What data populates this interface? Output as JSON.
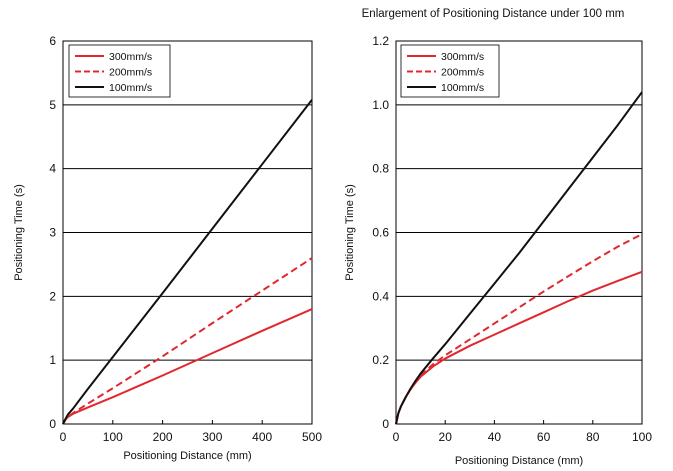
{
  "chart_data": [
    {
      "type": "line",
      "title": "",
      "xlabel": "Positioning Distance (mm)",
      "ylabel": "Positioning Time (s)",
      "xlim": [
        0,
        500
      ],
      "ylim": [
        0,
        6
      ],
      "xticks": [
        0,
        100,
        200,
        300,
        400,
        500
      ],
      "yticks": [
        0,
        1,
        2,
        3,
        4,
        5,
        6
      ],
      "grid": "horizontal",
      "legend": "top-left",
      "series": [
        {
          "name": "300mm/s",
          "color": "#e0282e",
          "dash": "solid",
          "x": [
            0,
            5,
            10,
            20,
            50,
            100,
            200,
            300,
            400,
            500
          ],
          "y": [
            0,
            0.07,
            0.11,
            0.16,
            0.26,
            0.42,
            0.76,
            1.11,
            1.46,
            1.8
          ]
        },
        {
          "name": "200mm/s",
          "color": "#e0282e",
          "dash": "dashed",
          "x": [
            0,
            5,
            10,
            20,
            50,
            100,
            200,
            300,
            400,
            500
          ],
          "y": [
            0,
            0.07,
            0.11,
            0.17,
            0.32,
            0.56,
            1.06,
            1.58,
            2.09,
            2.6
          ]
        },
        {
          "name": "100mm/s",
          "color": "#111111",
          "dash": "solid",
          "x": [
            0,
            5,
            10,
            20,
            50,
            100,
            200,
            300,
            400,
            500
          ],
          "y": [
            0,
            0.08,
            0.15,
            0.24,
            0.55,
            1.05,
            2.05,
            3.06,
            4.07,
            5.08
          ]
        }
      ]
    },
    {
      "type": "line",
      "title": "Enlargement of Positioning Distance under 100 mm",
      "xlabel": "Positioning Distance (mm)",
      "ylabel": "Positioning Time (s)",
      "xlim": [
        0,
        100
      ],
      "ylim": [
        0,
        1.2
      ],
      "xticks": [
        0,
        20,
        40,
        60,
        80,
        100
      ],
      "yticks": [
        0,
        0.2,
        0.4,
        0.6,
        0.8,
        1.0,
        1.2
      ],
      "ytick_labels": [
        "0",
        "0.2",
        "0.4",
        "0.6",
        "0.8",
        "1.0",
        "1.2"
      ],
      "grid": "horizontal",
      "legend": "top-left",
      "series": [
        {
          "name": "300mm/s",
          "color": "#e0282e",
          "dash": "solid",
          "x": [
            0,
            1,
            2,
            4,
            6,
            8,
            10,
            15,
            20,
            30,
            40,
            50,
            60,
            70,
            80,
            90,
            100
          ],
          "y": [
            0,
            0.035,
            0.055,
            0.085,
            0.11,
            0.13,
            0.148,
            0.18,
            0.205,
            0.245,
            0.28,
            0.315,
            0.35,
            0.385,
            0.418,
            0.448,
            0.477
          ]
        },
        {
          "name": "200mm/s",
          "color": "#e0282e",
          "dash": "dashed",
          "x": [
            0,
            1,
            2,
            4,
            6,
            8,
            10,
            15,
            20,
            30,
            40,
            50,
            60,
            70,
            80,
            90,
            100
          ],
          "y": [
            0,
            0.035,
            0.055,
            0.085,
            0.11,
            0.132,
            0.152,
            0.187,
            0.215,
            0.265,
            0.315,
            0.365,
            0.415,
            0.463,
            0.51,
            0.555,
            0.595
          ]
        },
        {
          "name": "100mm/s",
          "color": "#111111",
          "dash": "solid",
          "x": [
            0,
            1,
            2,
            4,
            6,
            8,
            10,
            15,
            20,
            30,
            40,
            50,
            60,
            70,
            80,
            90,
            100
          ],
          "y": [
            0,
            0.035,
            0.055,
            0.085,
            0.112,
            0.136,
            0.158,
            0.205,
            0.25,
            0.345,
            0.44,
            0.535,
            0.635,
            0.735,
            0.835,
            0.935,
            1.04
          ]
        }
      ]
    }
  ]
}
